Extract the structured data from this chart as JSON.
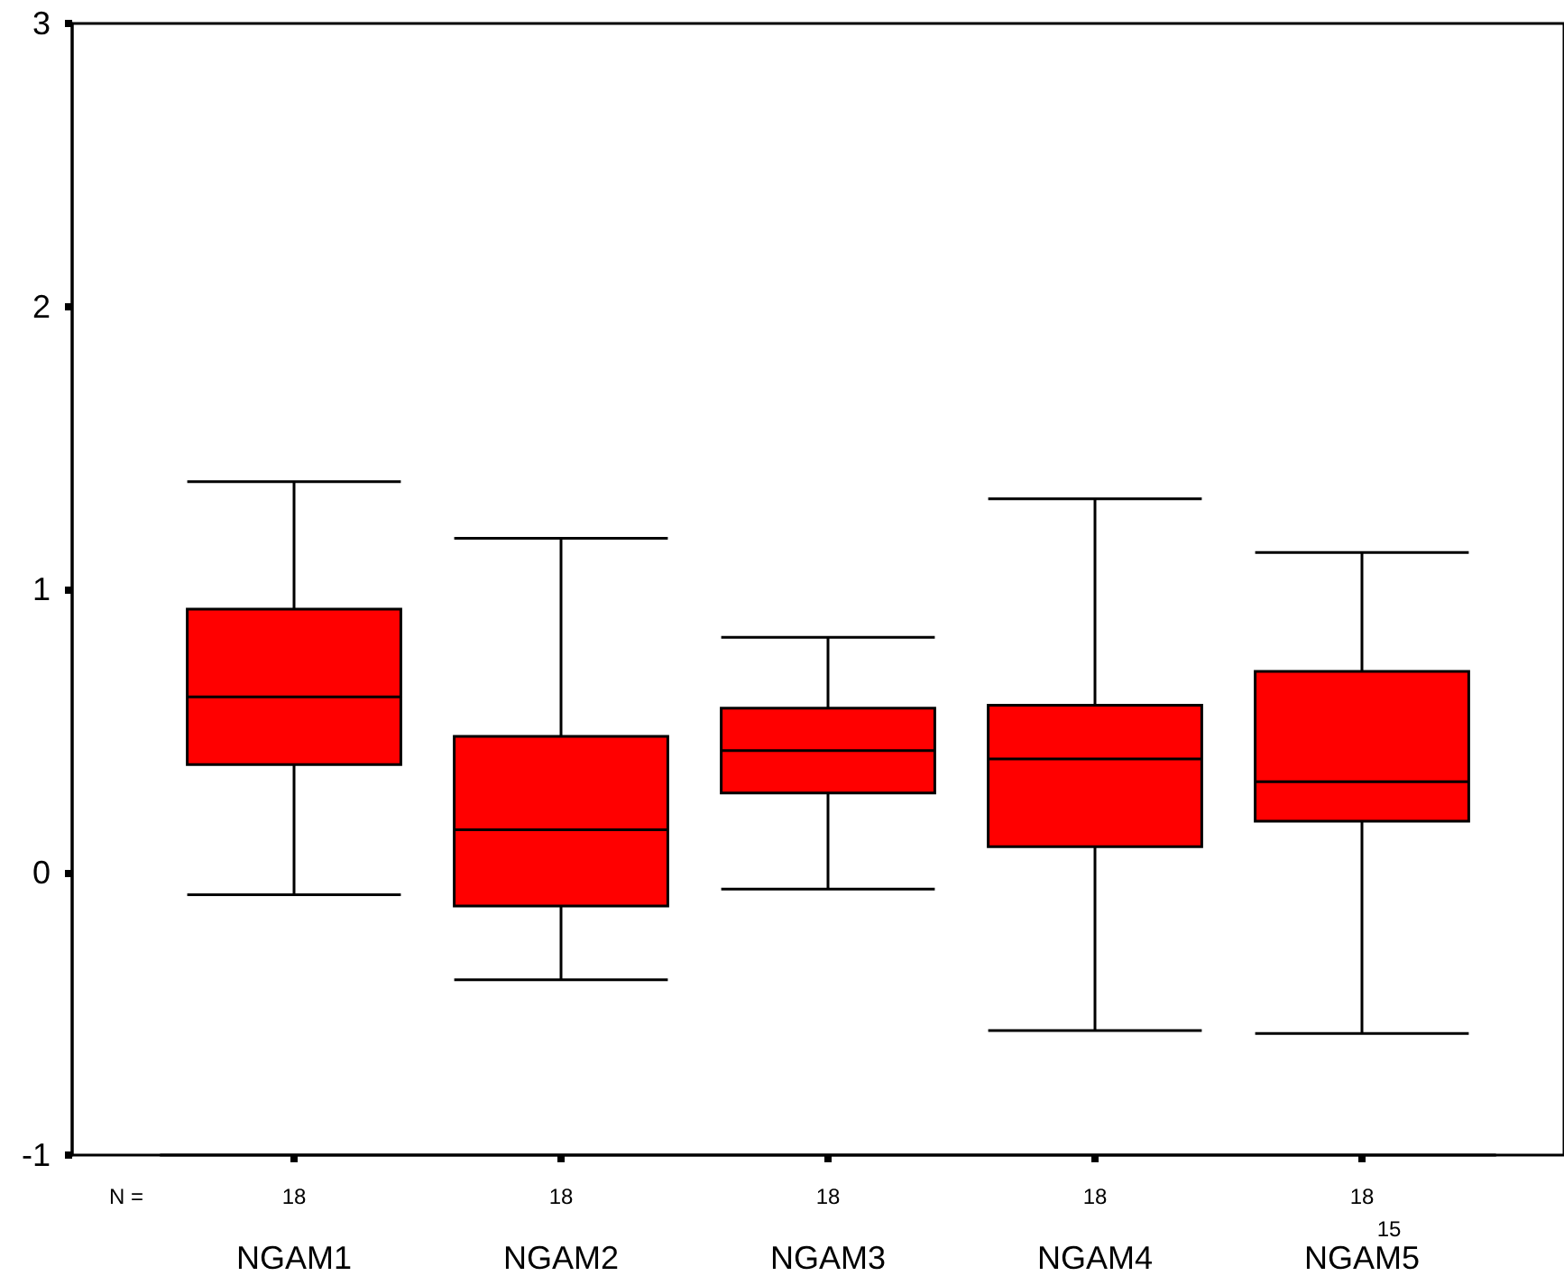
{
  "chart_data": {
    "type": "box",
    "categories": [
      "NGAM1",
      "NGAM2",
      "NGAM3",
      "NGAM4",
      "NGAM5"
    ],
    "color": "#ff0000",
    "boxes": [
      {
        "low": -0.08,
        "q1": 0.38,
        "median": 0.62,
        "q3": 0.93,
        "high": 1.38
      },
      {
        "low": -0.38,
        "q1": -0.12,
        "median": 0.15,
        "q3": 0.48,
        "high": 1.18
      },
      {
        "low": -0.06,
        "q1": 0.28,
        "median": 0.43,
        "q3": 0.58,
        "high": 0.83
      },
      {
        "low": -0.56,
        "q1": 0.09,
        "median": 0.4,
        "q3": 0.59,
        "high": 1.32
      },
      {
        "low": -0.57,
        "q1": 0.18,
        "median": 0.32,
        "q3": 0.71,
        "high": 1.13
      }
    ],
    "ylim": [
      -1,
      3
    ],
    "yticks": [
      -1,
      0,
      1,
      2,
      3
    ],
    "annotations": [
      "N =",
      "18",
      "18",
      "18",
      "18",
      "18",
      "15"
    ]
  }
}
